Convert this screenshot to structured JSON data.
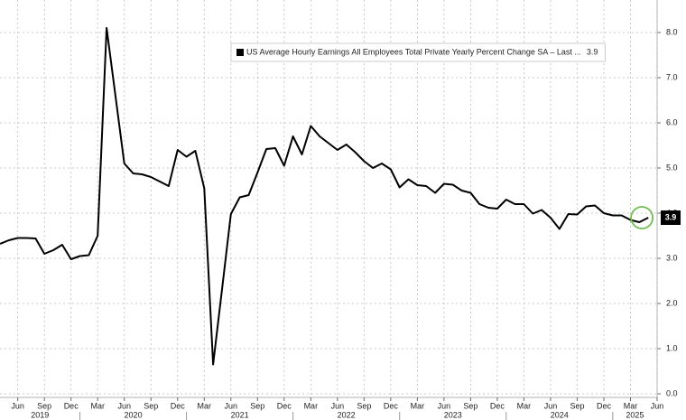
{
  "chart_data": {
    "type": "line",
    "x": [
      "2019-04",
      "2019-05",
      "2019-06",
      "2019-07",
      "2019-08",
      "2019-09",
      "2019-10",
      "2019-11",
      "2019-12",
      "2020-01",
      "2020-02",
      "2020-03",
      "2020-04",
      "2020-05",
      "2020-06",
      "2020-07",
      "2020-08",
      "2020-09",
      "2020-10",
      "2020-11",
      "2020-12",
      "2021-01",
      "2021-02",
      "2021-03",
      "2021-04",
      "2021-05",
      "2021-06",
      "2021-07",
      "2021-08",
      "2021-09",
      "2021-10",
      "2021-11",
      "2021-12",
      "2022-01",
      "2022-02",
      "2022-03",
      "2022-04",
      "2022-05",
      "2022-06",
      "2022-07",
      "2022-08",
      "2022-09",
      "2022-10",
      "2022-11",
      "2022-12",
      "2023-01",
      "2023-02",
      "2023-03",
      "2023-04",
      "2023-05",
      "2023-06",
      "2023-07",
      "2023-08",
      "2023-09",
      "2023-10",
      "2023-11",
      "2023-12",
      "2024-01",
      "2024-02",
      "2024-03",
      "2024-04",
      "2024-05",
      "2024-06",
      "2024-07",
      "2024-08",
      "2024-09",
      "2024-10",
      "2024-11",
      "2024-12",
      "2025-01",
      "2025-02",
      "2025-03",
      "2025-04",
      "2025-05"
    ],
    "series": [
      {
        "name": "US Average Hourly Earnings All Employees Total Private Yearly Percent Change SA – Last ...",
        "color": "#000000",
        "values": [
          3.32,
          3.4,
          3.45,
          3.45,
          3.44,
          3.1,
          3.18,
          3.3,
          2.98,
          3.05,
          3.07,
          3.5,
          8.1,
          6.6,
          5.1,
          4.88,
          4.86,
          4.8,
          4.7,
          4.6,
          5.4,
          5.25,
          5.38,
          4.55,
          0.65,
          2.3,
          3.98,
          4.35,
          4.4,
          4.9,
          5.42,
          5.44,
          5.05,
          5.7,
          5.3,
          5.93,
          5.7,
          5.55,
          5.4,
          5.52,
          5.35,
          5.15,
          5.0,
          5.1,
          4.97,
          4.57,
          4.75,
          4.62,
          4.6,
          4.45,
          4.65,
          4.63,
          4.5,
          4.45,
          4.2,
          4.12,
          4.1,
          4.3,
          4.2,
          4.2,
          3.99,
          4.07,
          3.9,
          3.65,
          3.98,
          3.97,
          4.15,
          4.17,
          4.0,
          3.95,
          3.95,
          3.85,
          3.8,
          3.9
        ],
        "last_label": "3.9"
      }
    ],
    "xlim": [
      "2019-04",
      "2025-06"
    ],
    "xticks": [
      {
        "value": "2019-06",
        "label": "Jun"
      },
      {
        "value": "2019-09",
        "label": "Sep"
      },
      {
        "value": "2019-12",
        "label": "Dec"
      },
      {
        "value": "2020-03",
        "label": "Mar"
      },
      {
        "value": "2020-06",
        "label": "Jun"
      },
      {
        "value": "2020-09",
        "label": "Sep"
      },
      {
        "value": "2020-12",
        "label": "Dec"
      },
      {
        "value": "2021-03",
        "label": "Mar"
      },
      {
        "value": "2021-06",
        "label": "Jun"
      },
      {
        "value": "2021-09",
        "label": "Sep"
      },
      {
        "value": "2021-12",
        "label": "Dec"
      },
      {
        "value": "2022-03",
        "label": "Mar"
      },
      {
        "value": "2022-06",
        "label": "Jun"
      },
      {
        "value": "2022-09",
        "label": "Sep"
      },
      {
        "value": "2022-12",
        "label": "Dec"
      },
      {
        "value": "2023-03",
        "label": "Mar"
      },
      {
        "value": "2023-06",
        "label": "Jun"
      },
      {
        "value": "2023-09",
        "label": "Sep"
      },
      {
        "value": "2023-12",
        "label": "Dec"
      },
      {
        "value": "2024-03",
        "label": "Mar"
      },
      {
        "value": "2024-06",
        "label": "Jun"
      },
      {
        "value": "2024-09",
        "label": "Sep"
      },
      {
        "value": "2024-12",
        "label": "Dec"
      },
      {
        "value": "2025-03",
        "label": "Mar"
      },
      {
        "value": "2025-06",
        "label": "Jun"
      }
    ],
    "years": [
      "2019",
      "2020",
      "2021",
      "2022",
      "2023",
      "2024",
      "2025"
    ],
    "ylim": [
      0,
      8.6
    ],
    "yticks": [
      {
        "value": 0,
        "label": "0.0"
      },
      {
        "value": 1,
        "label": "1.0"
      },
      {
        "value": 2,
        "label": "2.0"
      },
      {
        "value": 3,
        "label": "3.0"
      },
      {
        "value": 4,
        "label": "4.0"
      },
      {
        "value": 5,
        "label": "5.0"
      },
      {
        "value": 6,
        "label": "6.0"
      },
      {
        "value": 7,
        "label": "7.0"
      },
      {
        "value": 8,
        "label": "8.0"
      }
    ],
    "grid": true
  }
}
